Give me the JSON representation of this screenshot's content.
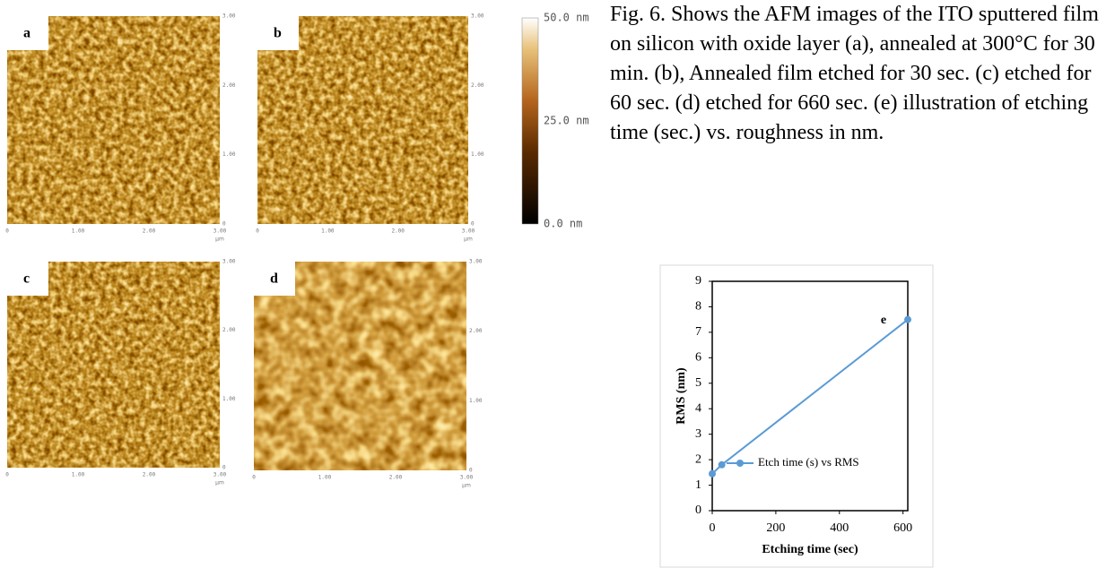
{
  "afm_panels": [
    {
      "label": "a",
      "xticks": [
        "0",
        "1.00",
        "2.00",
        "3.00"
      ],
      "yticks": [
        "0",
        "1.00",
        "2.00",
        "3.00"
      ],
      "unit": "μm"
    },
    {
      "label": "b",
      "xticks": [
        "0",
        "1.00",
        "2.00",
        "3.00"
      ],
      "yticks": [
        "0",
        "1.00",
        "2.00",
        "3.00"
      ],
      "unit": "μm"
    },
    {
      "label": "c",
      "xticks": [
        "0",
        "1.00",
        "2.00",
        "3.00"
      ],
      "yticks": [
        "0",
        "1.00",
        "2.00",
        "3.00"
      ],
      "unit": "μm"
    },
    {
      "label": "d",
      "xticks": [
        "0",
        "1.00",
        "2.00",
        "3.00"
      ],
      "yticks": [
        "0",
        "1.00",
        "2.00",
        "3.00"
      ],
      "unit": "μm"
    }
  ],
  "colorbar": {
    "labels": [
      "50.0 nm",
      "25.0 nm",
      "0.0 nm"
    ]
  },
  "caption": "Fig. 6. Shows the AFM images of the ITO sputtered film on silicon with oxide layer (a), annealed at 300°C for 30 min. (b), Annealed film etched for 30 sec. (c) etched for 60 sec. (d) etched for 660 sec. (e) illustration of etching time (sec.) vs. roughness in nm.",
  "chart_data": {
    "type": "line",
    "annotation": "e",
    "x_label": "Etching time  (sec)",
    "y_label": "RMS (nm)",
    "x": [
      0,
      30,
      615
    ],
    "series": [
      {
        "name": "Etch time (s) vs RMS",
        "color": "#5b9bd5",
        "values": [
          1.45,
          1.8,
          7.5
        ]
      }
    ],
    "xlim": [
      0,
      615
    ],
    "xticks": [
      0,
      200,
      400,
      600
    ],
    "ylim": [
      0,
      9
    ],
    "yticks": [
      0,
      1,
      2,
      3,
      4,
      5,
      6,
      7,
      8,
      9
    ]
  }
}
